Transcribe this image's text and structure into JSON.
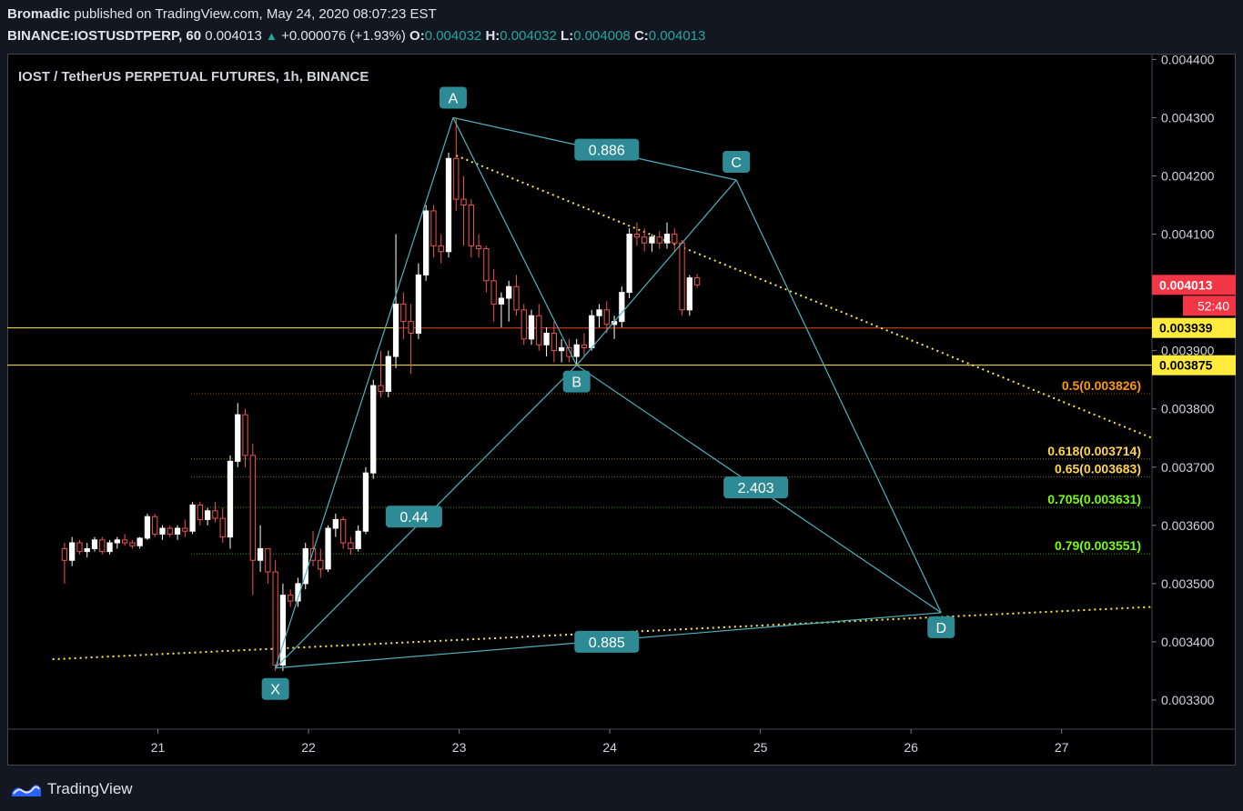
{
  "header": {
    "author": "Bromadic",
    "published": "published on TradingView.com, May 24, 2020 08:07:23 EST",
    "symbol": "BINANCE:IOSTUSDTPERP, 60",
    "last": "0.004013",
    "arrow": "▲",
    "change": "+0.000076 (+1.93%)",
    "o_label": "O:",
    "o_value": "0.004032",
    "h_label": "H:",
    "h_value": "0.004032",
    "l_label": "L:",
    "l_value": "0.004008",
    "c_label": "C:",
    "c_value": "0.004013"
  },
  "footer": {
    "logo_text": "TradingView",
    "logo_icon": "tradingview-logo-icon"
  },
  "colors": {
    "bull": "#ffffff",
    "bear": "#ef5350",
    "pattern": "#4fb3bf",
    "label_bg": "#2e8b95",
    "yellow_line": "#ffeb3b",
    "price_tag": "#f23645"
  },
  "chart_data": {
    "type": "candlestick",
    "title": "IOST / TetherUS PERPETUAL FUTURES, 1h, BINANCE",
    "x_ticks": [
      "21",
      "22",
      "23",
      "24",
      "25",
      "26",
      "27"
    ],
    "y_ticks": [
      "0.004400",
      "0.004300",
      "0.004200",
      "0.004100",
      "0.003900",
      "0.003800",
      "0.003700",
      "0.003600",
      "0.003500",
      "0.003400",
      "0.003300"
    ],
    "ylim": [
      0.00325,
      0.00441
    ],
    "last_price": "0.004013",
    "countdown": "52:40",
    "horizontal_levels": [
      {
        "label": "0.003939",
        "value": 0.003939
      },
      {
        "label": "0.003875",
        "value": 0.003875
      }
    ],
    "fib_levels": [
      {
        "label": "0.5(0.003826)",
        "value": 0.003826,
        "color": "#ff9800"
      },
      {
        "label": "0.618(0.003714)",
        "value": 0.003714,
        "color": "#ffd54f"
      },
      {
        "label": "0.65(0.003683)",
        "value": 0.003683,
        "color": "#ffd54f"
      },
      {
        "label": "0.705(0.003631)",
        "value": 0.003631,
        "color": "#76ff03"
      },
      {
        "label": "0.79(0.003551)",
        "value": 0.003551,
        "color": "#76ff03"
      }
    ],
    "pattern_points": [
      {
        "name": "X",
        "day": 21.78,
        "price": 0.003355
      },
      {
        "name": "A",
        "day": 22.96,
        "price": 0.0043
      },
      {
        "name": "B",
        "day": 23.78,
        "price": 0.003875
      },
      {
        "name": "C",
        "day": 24.84,
        "price": 0.004193
      },
      {
        "name": "D",
        "day": 26.2,
        "price": 0.00345
      }
    ],
    "pattern_ratios": [
      {
        "label": "0.886",
        "day": 23.98,
        "price": 0.004245
      },
      {
        "label": "0.44",
        "day": 22.7,
        "price": 0.003615
      },
      {
        "label": "2.403",
        "day": 24.97,
        "price": 0.003665
      },
      {
        "label": "0.885",
        "day": 23.98,
        "price": 0.0034
      }
    ],
    "trendlines": [
      {
        "name": "upper",
        "from": [
          22.98,
          0.004235
        ],
        "to": [
          27.6,
          0.00375
        ]
      },
      {
        "name": "lower",
        "from": [
          20.3,
          0.00337
        ],
        "to": [
          27.6,
          0.00346
        ]
      }
    ],
    "candles": [
      [
        20.38,
        0.00356,
        0.00357,
        0.0035,
        0.00354
      ],
      [
        20.43,
        0.00354,
        0.00358,
        0.00353,
        0.00357
      ],
      [
        20.48,
        0.00357,
        0.003575,
        0.00355,
        0.003555
      ],
      [
        20.53,
        0.003555,
        0.00357,
        0.003545,
        0.00356
      ],
      [
        20.58,
        0.00356,
        0.00358,
        0.003555,
        0.003575
      ],
      [
        20.63,
        0.003575,
        0.00358,
        0.00355,
        0.003555
      ],
      [
        20.68,
        0.003555,
        0.003575,
        0.00355,
        0.00357
      ],
      [
        20.73,
        0.00357,
        0.00358,
        0.00356,
        0.003575
      ],
      [
        20.78,
        0.003575,
        0.003585,
        0.003565,
        0.00357
      ],
      [
        20.83,
        0.00357,
        0.003575,
        0.00356,
        0.003565
      ],
      [
        20.88,
        0.003565,
        0.00358,
        0.00356,
        0.003578
      ],
      [
        20.93,
        0.003578,
        0.00362,
        0.003575,
        0.003615
      ],
      [
        20.98,
        0.003615,
        0.00362,
        0.00358,
        0.003585
      ],
      [
        21.03,
        0.003585,
        0.0036,
        0.003575,
        0.003595
      ],
      [
        21.08,
        0.003595,
        0.0036,
        0.00358,
        0.003585
      ],
      [
        21.13,
        0.003585,
        0.0036,
        0.003575,
        0.003595
      ],
      [
        21.18,
        0.003595,
        0.00361,
        0.00358,
        0.00359
      ],
      [
        21.23,
        0.00359,
        0.00364,
        0.003585,
        0.003635
      ],
      [
        21.28,
        0.003635,
        0.00364,
        0.0036,
        0.00361
      ],
      [
        21.33,
        0.00361,
        0.00363,
        0.0036,
        0.003625
      ],
      [
        21.38,
        0.003625,
        0.00364,
        0.003605,
        0.003612
      ],
      [
        21.43,
        0.003612,
        0.00363,
        0.00357,
        0.00358
      ],
      [
        21.48,
        0.00358,
        0.00372,
        0.00356,
        0.00371
      ],
      [
        21.53,
        0.00371,
        0.00381,
        0.0037,
        0.00379
      ],
      [
        21.58,
        0.00379,
        0.0038,
        0.0037,
        0.00372
      ],
      [
        21.63,
        0.00372,
        0.00374,
        0.00348,
        0.00354
      ],
      [
        21.68,
        0.00354,
        0.0036,
        0.00352,
        0.00356
      ],
      [
        21.73,
        0.00356,
        0.00356,
        0.0035,
        0.00352
      ],
      [
        21.78,
        0.00352,
        0.00354,
        0.00335,
        0.00336
      ],
      [
        21.83,
        0.00336,
        0.0035,
        0.00335,
        0.00348
      ],
      [
        21.88,
        0.00348,
        0.00349,
        0.00346,
        0.00347
      ],
      [
        21.93,
        0.00347,
        0.00351,
        0.00346,
        0.0035
      ],
      [
        21.98,
        0.0035,
        0.00357,
        0.00349,
        0.00356
      ],
      [
        22.03,
        0.00356,
        0.00359,
        0.00353,
        0.00354
      ],
      [
        22.08,
        0.00354,
        0.00356,
        0.00351,
        0.003525
      ],
      [
        22.13,
        0.003525,
        0.0036,
        0.00352,
        0.003595
      ],
      [
        22.18,
        0.003595,
        0.00362,
        0.00358,
        0.00361
      ],
      [
        22.23,
        0.00361,
        0.003615,
        0.00356,
        0.00357
      ],
      [
        22.28,
        0.00357,
        0.00358,
        0.00355,
        0.00356
      ],
      [
        22.33,
        0.00356,
        0.0036,
        0.003555,
        0.00359
      ],
      [
        22.38,
        0.00359,
        0.0037,
        0.003585,
        0.00369
      ],
      [
        22.43,
        0.00369,
        0.00385,
        0.00368,
        0.00384
      ],
      [
        22.48,
        0.00384,
        0.0039,
        0.00382,
        0.00383
      ],
      [
        22.53,
        0.00383,
        0.0039,
        0.00382,
        0.00389
      ],
      [
        22.58,
        0.00389,
        0.0041,
        0.00387,
        0.00398
      ],
      [
        22.63,
        0.00398,
        0.004,
        0.00392,
        0.00395
      ],
      [
        22.68,
        0.00395,
        0.00398,
        0.00386,
        0.00393
      ],
      [
        22.73,
        0.00393,
        0.00405,
        0.00392,
        0.00403
      ],
      [
        22.78,
        0.00403,
        0.00415,
        0.00402,
        0.00414
      ],
      [
        22.83,
        0.00414,
        0.00415,
        0.00406,
        0.00408
      ],
      [
        22.88,
        0.00408,
        0.0041,
        0.00405,
        0.00407
      ],
      [
        22.93,
        0.00407,
        0.00424,
        0.00406,
        0.00423
      ],
      [
        22.98,
        0.00423,
        0.0043,
        0.00414,
        0.00416
      ],
      [
        23.03,
        0.00416,
        0.0042,
        0.00408,
        0.00415
      ],
      [
        23.08,
        0.00415,
        0.00416,
        0.00406,
        0.00408
      ],
      [
        23.13,
        0.00408,
        0.0041,
        0.00406,
        0.004075
      ],
      [
        23.18,
        0.004075,
        0.00408,
        0.004,
        0.00402
      ],
      [
        23.23,
        0.00402,
        0.00404,
        0.00395,
        0.00398
      ],
      [
        23.28,
        0.00398,
        0.004,
        0.00394,
        0.00399
      ],
      [
        23.33,
        0.00399,
        0.00402,
        0.00395,
        0.00401
      ],
      [
        23.38,
        0.00401,
        0.00403,
        0.00396,
        0.00397
      ],
      [
        23.43,
        0.00397,
        0.00398,
        0.00391,
        0.00392
      ],
      [
        23.48,
        0.00392,
        0.00397,
        0.00391,
        0.00396
      ],
      [
        23.53,
        0.00396,
        0.00398,
        0.0039,
        0.00391
      ],
      [
        23.58,
        0.00391,
        0.00394,
        0.00389,
        0.00393
      ],
      [
        23.63,
        0.00393,
        0.00395,
        0.00388,
        0.0039
      ],
      [
        23.68,
        0.0039,
        0.00392,
        0.00388,
        0.003905
      ],
      [
        23.73,
        0.003905,
        0.00392,
        0.00388,
        0.00389
      ],
      [
        23.78,
        0.00389,
        0.00392,
        0.003875,
        0.00391
      ],
      [
        23.83,
        0.00391,
        0.00393,
        0.00389,
        0.003905
      ],
      [
        23.88,
        0.003905,
        0.00397,
        0.0039,
        0.00396
      ],
      [
        23.93,
        0.00396,
        0.00398,
        0.00394,
        0.00397
      ],
      [
        23.98,
        0.00397,
        0.003985,
        0.00393,
        0.003945
      ],
      [
        24.03,
        0.003945,
        0.00396,
        0.00392,
        0.00395
      ],
      [
        24.08,
        0.00395,
        0.00401,
        0.00394,
        0.004
      ],
      [
        24.13,
        0.004,
        0.00411,
        0.00399,
        0.0041
      ],
      [
        24.18,
        0.0041,
        0.00412,
        0.00408,
        0.004095
      ],
      [
        24.23,
        0.004095,
        0.00411,
        0.00407,
        0.004085
      ],
      [
        24.28,
        0.004085,
        0.0041,
        0.00407,
        0.004095
      ],
      [
        24.33,
        0.004095,
        0.004105,
        0.004075,
        0.004085
      ],
      [
        24.38,
        0.004085,
        0.00412,
        0.004075,
        0.0041
      ],
      [
        24.43,
        0.0041,
        0.00411,
        0.00407,
        0.004085
      ],
      [
        24.48,
        0.004085,
        0.00409,
        0.00396,
        0.00397
      ],
      [
        24.53,
        0.00397,
        0.00403,
        0.00396,
        0.004025
      ],
      [
        24.58,
        0.004025,
        0.004032,
        0.004008,
        0.004013
      ]
    ]
  }
}
